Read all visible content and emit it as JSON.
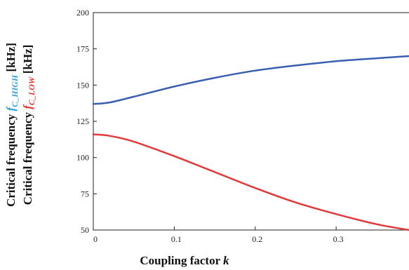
{
  "chart_data": {
    "type": "line",
    "xlabel": {
      "text": "Coupling factor ",
      "symbol": "k"
    },
    "ylabel_lines": [
      {
        "prefix": "Critical frequency ",
        "symbol": "f",
        "subscript": "C_HIGH",
        "suffix": " [kHz]",
        "color": "#2ba3d6"
      },
      {
        "prefix": "Critical frequency ",
        "symbol": "f",
        "subscript": "C_LOW",
        "suffix": " [kHz]",
        "color": "#e8372f"
      }
    ],
    "xlim": [
      0,
      0.39
    ],
    "ylim": [
      50,
      200
    ],
    "xticks": [
      0,
      0.1,
      0.2,
      0.3
    ],
    "xtick_labels": [
      "0",
      "0.1",
      "0.2",
      "0.3"
    ],
    "yticks": [
      50,
      75,
      100,
      125,
      150,
      175,
      200
    ],
    "ytick_labels": [
      "50",
      "75",
      "100",
      "125",
      "150",
      "175",
      "200"
    ],
    "grid": false,
    "series": [
      {
        "color": "#3a5fb0",
        "x": [
          0,
          0.02,
          0.05,
          0.1,
          0.15,
          0.2,
          0.25,
          0.3,
          0.35,
          0.39
        ],
        "y": [
          137,
          138,
          142,
          149,
          155,
          160,
          163.5,
          166.5,
          168.5,
          170
        ]
      },
      {
        "color": "#e03a3a",
        "x": [
          0,
          0.02,
          0.05,
          0.1,
          0.15,
          0.2,
          0.25,
          0.3,
          0.35,
          0.39
        ],
        "y": [
          116,
          115,
          111,
          101,
          90,
          79,
          69,
          61,
          54,
          50
        ]
      }
    ]
  }
}
